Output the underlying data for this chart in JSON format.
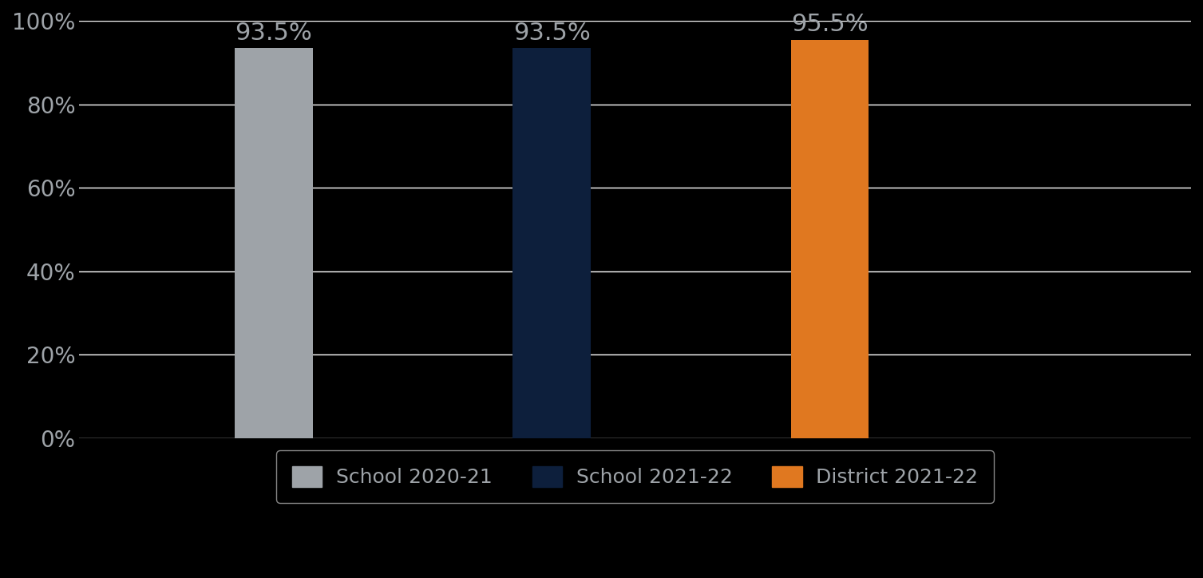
{
  "categories": [
    "School 2020-21",
    "School 2021-22",
    "District 2021-22"
  ],
  "values": [
    93.5,
    93.5,
    95.5
  ],
  "bar_colors": [
    "#9EA3A8",
    "#0D1F3C",
    "#E07820"
  ],
  "background_color": "#000000",
  "plot_bg_color": "#000000",
  "text_color": "#9EA3A8",
  "grid_color": "#FFFFFF",
  "ylim": [
    0,
    100
  ],
  "ytick_labels": [
    "0%",
    "20%",
    "40%",
    "60%",
    "80%",
    "100%"
  ],
  "ytick_values": [
    0,
    20,
    40,
    60,
    80,
    100
  ],
  "bar_width": 0.28,
  "x_positions": [
    1.5,
    2.5,
    3.5
  ],
  "xlim": [
    0.8,
    4.8
  ],
  "value_labels": [
    "93.5%",
    "93.5%",
    "95.5%"
  ],
  "legend_labels": [
    "School 2020-21",
    "School 2021-22",
    "District 2021-22"
  ],
  "legend_colors": [
    "#9EA3A8",
    "#0D1F3C",
    "#E07820"
  ],
  "label_fontsize": 22,
  "tick_fontsize": 20,
  "legend_fontsize": 18,
  "legend_edge_color": "#AAAAAA",
  "grid_linewidth": 1.0
}
